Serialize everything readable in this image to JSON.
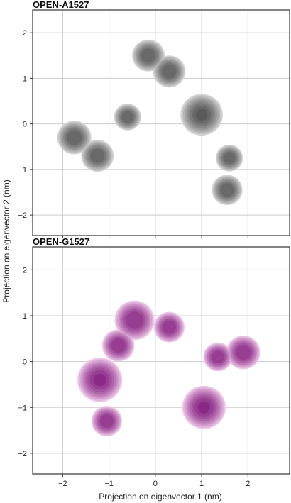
{
  "chart_data": [
    {
      "type": "contour",
      "title": "OPEN-A1527",
      "xlabel": "Projection on eigenvector 1 (nm)",
      "ylabel": "Projection on eigenvector 2 (nm)",
      "xlim": [
        -2.65,
        2.9
      ],
      "ylim": [
        -2.45,
        2.5
      ],
      "xticks": [
        -2,
        -1,
        0,
        1,
        2
      ],
      "yticks": [
        -2,
        -1,
        0,
        1,
        2
      ],
      "grid": true,
      "colors": {
        "outer": "#d4d4d4",
        "inner": "#5a5a5a"
      },
      "density_peaks": [
        {
          "x": -1.75,
          "y": -0.3,
          "weight": 0.55
        },
        {
          "x": -1.25,
          "y": -0.7,
          "weight": 0.5
        },
        {
          "x": -0.6,
          "y": 0.15,
          "weight": 0.35
        },
        {
          "x": -0.15,
          "y": 1.5,
          "weight": 0.5
        },
        {
          "x": 0.3,
          "y": 1.15,
          "weight": 0.5
        },
        {
          "x": 1.0,
          "y": 0.2,
          "weight": 0.85
        },
        {
          "x": 1.6,
          "y": -0.75,
          "weight": 0.35
        },
        {
          "x": 1.55,
          "y": -1.45,
          "weight": 0.45
        }
      ]
    },
    {
      "type": "contour",
      "title": "OPEN-G1527",
      "xlabel": "Projection on eigenvector 1 (nm)",
      "ylabel": "Projection on eigenvector 2 (nm)",
      "xlim": [
        -2.65,
        2.9
      ],
      "ylim": [
        -2.45,
        2.5
      ],
      "xticks": [
        -2,
        -1,
        0,
        1,
        2
      ],
      "yticks": [
        -2,
        -1,
        0,
        1,
        2
      ],
      "grid": true,
      "colors": {
        "outer": "#eec8e8",
        "inner": "#8a2a86"
      },
      "density_peaks": [
        {
          "x": -1.2,
          "y": -0.4,
          "weight": 0.95
        },
        {
          "x": -1.05,
          "y": -1.3,
          "weight": 0.45
        },
        {
          "x": -0.8,
          "y": 0.35,
          "weight": 0.5
        },
        {
          "x": -0.45,
          "y": 0.9,
          "weight": 0.75
        },
        {
          "x": 0.3,
          "y": 0.75,
          "weight": 0.45
        },
        {
          "x": 1.05,
          "y": -1.0,
          "weight": 0.9
        },
        {
          "x": 1.35,
          "y": 0.1,
          "weight": 0.4
        },
        {
          "x": 1.9,
          "y": 0.2,
          "weight": 0.55
        }
      ]
    }
  ]
}
